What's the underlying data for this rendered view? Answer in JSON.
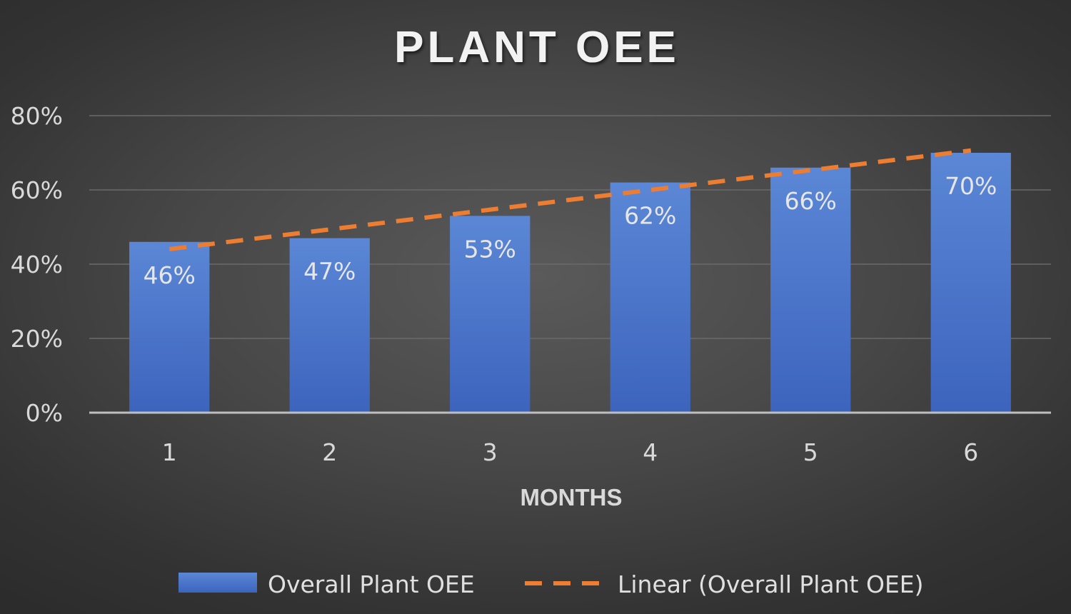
{
  "chart_data": {
    "type": "bar",
    "title": "PLANT OEE",
    "xlabel": "MONTHS",
    "ylabel": "",
    "categories": [
      "1",
      "2",
      "3",
      "4",
      "5",
      "6"
    ],
    "series": [
      {
        "name": "Overall Plant OEE",
        "values": [
          0.46,
          0.47,
          0.53,
          0.62,
          0.66,
          0.7
        ],
        "data_labels": [
          "46%",
          "47%",
          "53%",
          "62%",
          "66%",
          "70%"
        ],
        "color": "#4472c4"
      }
    ],
    "trendline": {
      "name": "Linear (Overall Plant OEE)",
      "type": "linear",
      "color": "#ed7d31",
      "dash": "dashed"
    },
    "ylim": [
      0,
      0.8
    ],
    "yticks": [
      0,
      0.2,
      0.4,
      0.6,
      0.8
    ],
    "ytick_labels": [
      "0%",
      "20%",
      "40%",
      "60%",
      "80%"
    ],
    "grid": true,
    "legend_position": "bottom"
  }
}
